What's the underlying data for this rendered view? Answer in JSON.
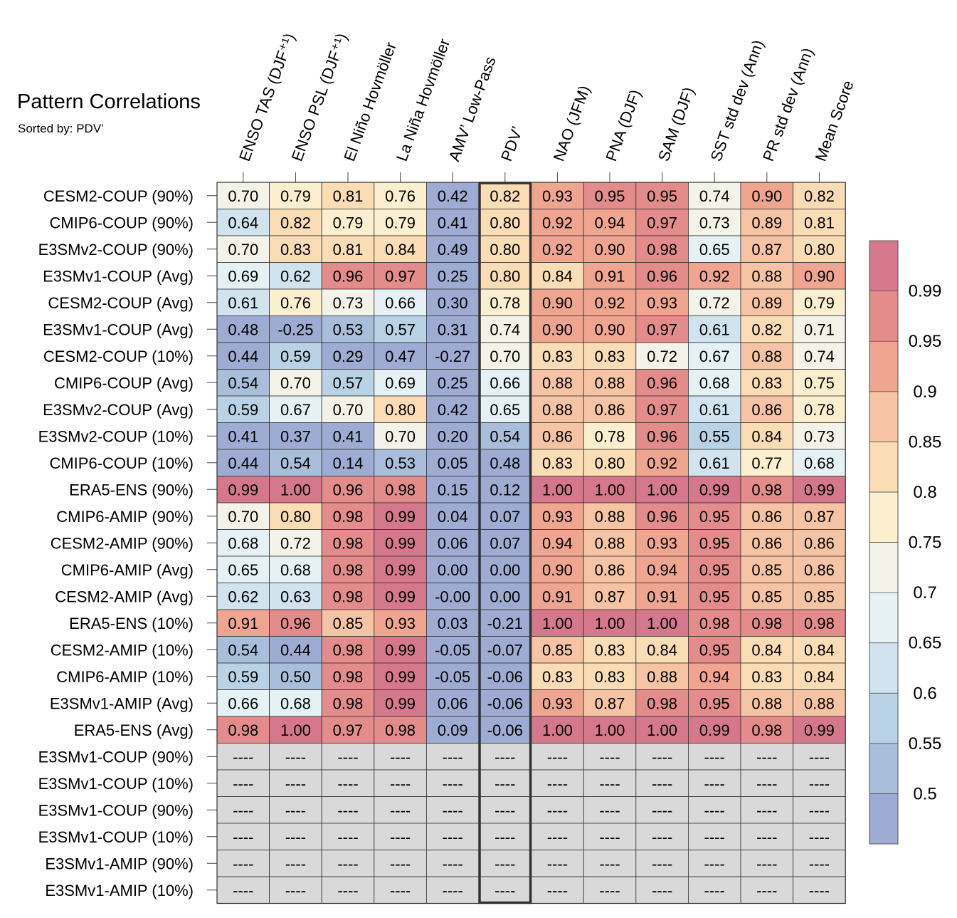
{
  "chart_data": {
    "type": "heatmap",
    "title": "Pattern Correlations",
    "subtitle": "Sorted by: PDV’",
    "highlighted_column": "PDV’",
    "columns": [
      "ENSO TAS (DJF⁺¹)",
      "ENSO PSL (DJF⁺¹)",
      "El Niño Hovmöller",
      "La Niña Hovmöller",
      "AMV’ Low-Pass",
      "PDV’",
      "NAO (JFM)",
      "PNA (DJF)",
      "SAM (DJF)",
      "SST std dev (Ann)",
      "PR std dev (Ann)",
      "Mean Score"
    ],
    "rows": [
      {
        "label": "CESM2-COUP (90%)",
        "values": [
          "0.70",
          "0.79",
          "0.81",
          "0.76",
          "0.42",
          "0.82",
          "0.93",
          "0.95",
          "0.95",
          "0.74",
          "0.90",
          "0.82"
        ]
      },
      {
        "label": "CMIP6-COUP (90%)",
        "values": [
          "0.64",
          "0.82",
          "0.79",
          "0.79",
          "0.41",
          "0.80",
          "0.92",
          "0.94",
          "0.97",
          "0.73",
          "0.89",
          "0.81"
        ]
      },
      {
        "label": "E3SMv2-COUP (90%)",
        "values": [
          "0.70",
          "0.83",
          "0.81",
          "0.84",
          "0.49",
          "0.80",
          "0.92",
          "0.90",
          "0.98",
          "0.65",
          "0.87",
          "0.80"
        ]
      },
      {
        "label": "E3SMv1-COUP (Avg)",
        "values": [
          "0.69",
          "0.62",
          "0.96",
          "0.97",
          "0.25",
          "0.80",
          "0.84",
          "0.91",
          "0.96",
          "0.92",
          "0.88",
          "0.90"
        ]
      },
      {
        "label": "CESM2-COUP (Avg)",
        "values": [
          "0.61",
          "0.76",
          "0.73",
          "0.66",
          "0.30",
          "0.78",
          "0.90",
          "0.92",
          "0.93",
          "0.72",
          "0.89",
          "0.79"
        ]
      },
      {
        "label": "E3SMv1-COUP (Avg)",
        "values": [
          "0.48",
          "-0.25",
          "0.53",
          "0.57",
          "0.31",
          "0.74",
          "0.90",
          "0.90",
          "0.97",
          "0.61",
          "0.82",
          "0.71"
        ]
      },
      {
        "label": "CESM2-COUP (10%)",
        "values": [
          "0.44",
          "0.59",
          "0.29",
          "0.47",
          "-0.27",
          "0.70",
          "0.83",
          "0.83",
          "0.72",
          "0.67",
          "0.88",
          "0.74"
        ]
      },
      {
        "label": "CMIP6-COUP (Avg)",
        "values": [
          "0.54",
          "0.70",
          "0.57",
          "0.69",
          "0.25",
          "0.66",
          "0.88",
          "0.88",
          "0.96",
          "0.68",
          "0.83",
          "0.75"
        ]
      },
      {
        "label": "E3SMv2-COUP (Avg)",
        "values": [
          "0.59",
          "0.67",
          "0.70",
          "0.80",
          "0.42",
          "0.65",
          "0.88",
          "0.86",
          "0.97",
          "0.61",
          "0.86",
          "0.78"
        ]
      },
      {
        "label": "E3SMv2-COUP (10%)",
        "values": [
          "0.41",
          "0.37",
          "0.41",
          "0.70",
          "0.20",
          "0.54",
          "0.86",
          "0.78",
          "0.96",
          "0.55",
          "0.84",
          "0.73"
        ]
      },
      {
        "label": "CMIP6-COUP (10%)",
        "values": [
          "0.44",
          "0.54",
          "0.14",
          "0.53",
          "0.05",
          "0.48",
          "0.83",
          "0.80",
          "0.92",
          "0.61",
          "0.77",
          "0.68"
        ]
      },
      {
        "label": "ERA5-ENS (90%)",
        "values": [
          "0.99",
          "1.00",
          "0.96",
          "0.98",
          "0.15",
          "0.12",
          "1.00",
          "1.00",
          "1.00",
          "0.99",
          "0.98",
          "0.99"
        ]
      },
      {
        "label": "CMIP6-AMIP (90%)",
        "values": [
          "0.70",
          "0.80",
          "0.98",
          "0.99",
          "0.04",
          "0.07",
          "0.93",
          "0.88",
          "0.96",
          "0.95",
          "0.86",
          "0.87"
        ]
      },
      {
        "label": "CESM2-AMIP (90%)",
        "values": [
          "0.68",
          "0.72",
          "0.98",
          "0.99",
          "0.06",
          "0.07",
          "0.94",
          "0.88",
          "0.93",
          "0.95",
          "0.86",
          "0.86"
        ]
      },
      {
        "label": "CMIP6-AMIP (Avg)",
        "values": [
          "0.65",
          "0.68",
          "0.98",
          "0.99",
          "0.00",
          "0.00",
          "0.90",
          "0.86",
          "0.94",
          "0.95",
          "0.85",
          "0.86"
        ]
      },
      {
        "label": "CESM2-AMIP (Avg)",
        "values": [
          "0.62",
          "0.63",
          "0.98",
          "0.99",
          "-0.00",
          "0.00",
          "0.91",
          "0.87",
          "0.91",
          "0.95",
          "0.85",
          "0.85"
        ]
      },
      {
        "label": "ERA5-ENS (10%)",
        "values": [
          "0.91",
          "0.96",
          "0.85",
          "0.93",
          "0.03",
          "-0.21",
          "1.00",
          "1.00",
          "1.00",
          "0.98",
          "0.98",
          "0.98"
        ]
      },
      {
        "label": "CESM2-AMIP (10%)",
        "values": [
          "0.54",
          "0.44",
          "0.98",
          "0.99",
          "-0.05",
          "-0.07",
          "0.85",
          "0.83",
          "0.84",
          "0.95",
          "0.84",
          "0.84"
        ]
      },
      {
        "label": "CMIP6-AMIP (10%)",
        "values": [
          "0.59",
          "0.50",
          "0.98",
          "0.99",
          "-0.05",
          "-0.06",
          "0.83",
          "0.83",
          "0.88",
          "0.94",
          "0.83",
          "0.84"
        ]
      },
      {
        "label": "E3SMv1-AMIP (Avg)",
        "values": [
          "0.66",
          "0.68",
          "0.98",
          "0.99",
          "0.06",
          "-0.06",
          "0.93",
          "0.87",
          "0.98",
          "0.95",
          "0.88",
          "0.88"
        ]
      },
      {
        "label": "ERA5-ENS (Avg)",
        "values": [
          "0.98",
          "1.00",
          "0.97",
          "0.98",
          "0.09",
          "-0.06",
          "1.00",
          "1.00",
          "1.00",
          "0.99",
          "0.98",
          "0.99"
        ]
      },
      {
        "label": "E3SMv1-COUP (90%)",
        "values": [
          "----",
          "----",
          "----",
          "----",
          "----",
          "----",
          "----",
          "----",
          "----",
          "----",
          "----",
          "----"
        ]
      },
      {
        "label": "E3SMv1-COUP (10%)",
        "values": [
          "----",
          "----",
          "----",
          "----",
          "----",
          "----",
          "----",
          "----",
          "----",
          "----",
          "----",
          "----"
        ]
      },
      {
        "label": "E3SMv1-COUP (90%)",
        "values": [
          "----",
          "----",
          "----",
          "----",
          "----",
          "----",
          "----",
          "----",
          "----",
          "----",
          "----",
          "----"
        ]
      },
      {
        "label": "E3SMv1-COUP (10%)",
        "values": [
          "----",
          "----",
          "----",
          "----",
          "----",
          "----",
          "----",
          "----",
          "----",
          "----",
          "----",
          "----"
        ]
      },
      {
        "label": "E3SMv1-AMIP (90%)",
        "values": [
          "----",
          "----",
          "----",
          "----",
          "----",
          "----",
          "----",
          "----",
          "----",
          "----",
          "----",
          "----"
        ]
      },
      {
        "label": "E3SMv1-AMIP (10%)",
        "values": [
          "----",
          "----",
          "----",
          "----",
          "----",
          "----",
          "----",
          "----",
          "----",
          "----",
          "----",
          "----"
        ]
      }
    ],
    "missing_color": "#d9d9d9",
    "colorbar": {
      "ticks": [
        "0.99",
        "0.95",
        "0.9",
        "0.85",
        "0.8",
        "0.75",
        "0.7",
        "0.65",
        "0.6",
        "0.55",
        "0.5"
      ],
      "bins": [
        {
          "upper": 0.5,
          "color": "#9eacd3"
        },
        {
          "upper": 0.55,
          "color": "#a9bedb"
        },
        {
          "upper": 0.6,
          "color": "#bad2e5"
        },
        {
          "upper": 0.65,
          "color": "#d0e3ef"
        },
        {
          "upper": 0.7,
          "color": "#e6f1f5"
        },
        {
          "upper": 0.75,
          "color": "#f3f3ea"
        },
        {
          "upper": 0.8,
          "color": "#fbefcf"
        },
        {
          "upper": 0.85,
          "color": "#fadcb5"
        },
        {
          "upper": 0.9,
          "color": "#f6c4a4"
        },
        {
          "upper": 0.95,
          "color": "#f0a591"
        },
        {
          "upper": 0.99,
          "color": "#e48b8b"
        },
        {
          "upper": 1.01,
          "color": "#d5788c"
        }
      ]
    }
  }
}
